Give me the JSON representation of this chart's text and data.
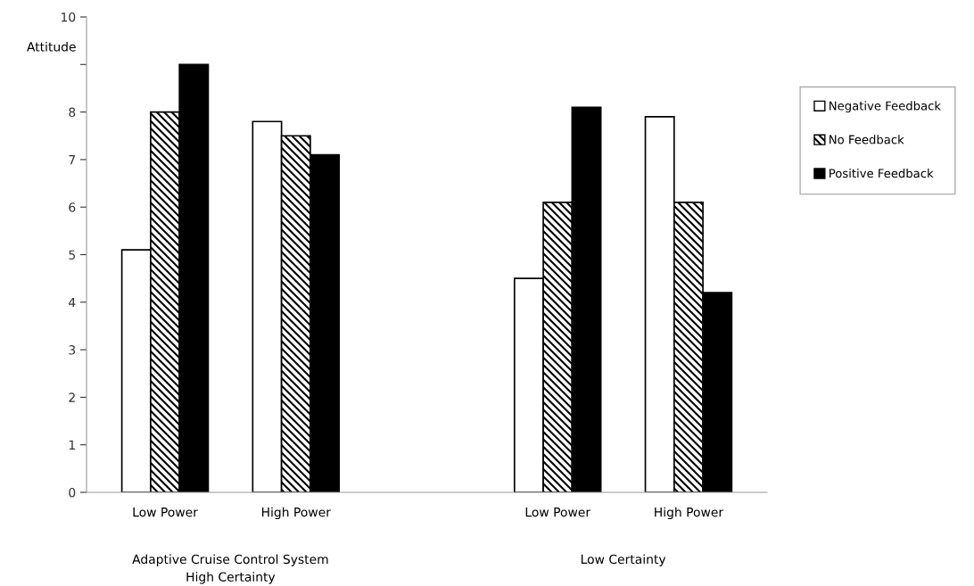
{
  "chart_data": {
    "type": "bar",
    "ylabel": "Attitude",
    "categories": [
      "Low Power",
      "High Power",
      null,
      "Low Power",
      "High Power"
    ],
    "series": [
      {
        "name": "Negative Feedback",
        "color": "#ffffff",
        "values": [
          5.1,
          7.8,
          null,
          4.5,
          7.9
        ]
      },
      {
        "name": "No Feedback",
        "color": "#000000",
        "values": [
          8.0,
          7.5,
          null,
          6.1,
          6.1
        ]
      },
      {
        "name": "Positive Feedback",
        "color": "#000000",
        "values": [
          9.0,
          7.1,
          null,
          8.1,
          4.2
        ]
      }
    ],
    "ylim": [
      0,
      10
    ],
    "yticks": [
      0,
      1,
      2,
      3,
      4,
      5,
      6,
      7,
      8,
      {
        "value": 9,
        "label": null
      },
      10
    ],
    "grid": false,
    "legend": "right",
    "annotations": [
      "Adaptive Cruise Control System\nHigh Certainty",
      "Low Certainty"
    ]
  }
}
